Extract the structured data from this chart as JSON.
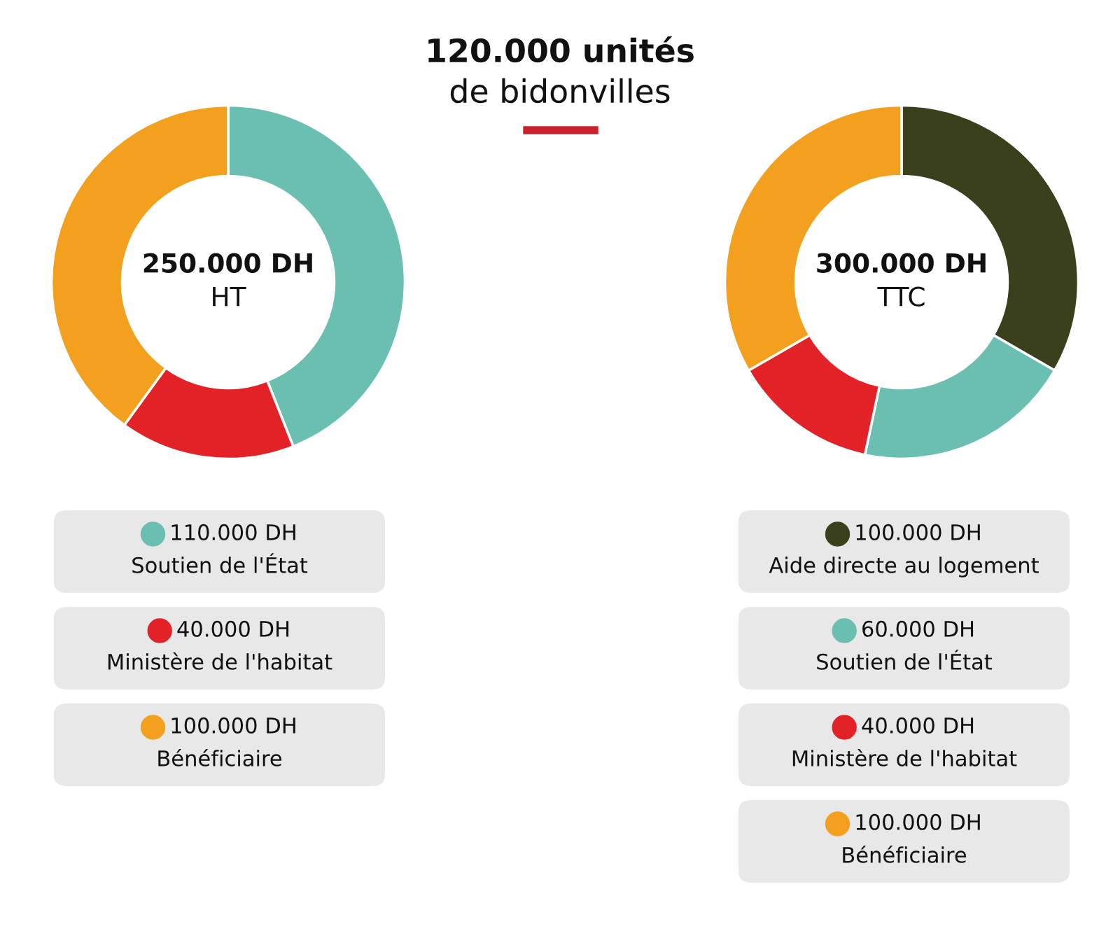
{
  "chart_data": [
    {
      "type": "donut",
      "title": "120.000 unités\nde bidonvilles",
      "categories": [
        "Soutien de l'État",
        "Ministère de l'habitat",
        "Bénéficiaire"
      ],
      "values": [
        110000,
        40000,
        100000
      ],
      "colors": [
        "#6abfb0",
        "#e32227",
        "#f3a01e"
      ],
      "value_labels": [
        "110.000 DH",
        "40.000 DH",
        "100.000 DH"
      ],
      "annotations": [
        "250.000 DH",
        "HT"
      ],
      "legend": "bottom"
    },
    {
      "type": "donut",
      "categories": [
        "Aide directe au logement",
        "Soutien de l'État",
        "Ministère de l'habitat",
        "Bénéficiaire"
      ],
      "values": [
        100000,
        60000,
        40000,
        100000
      ],
      "colors": [
        "#3a401b",
        "#6abfb0",
        "#e32227",
        "#f3a01e"
      ],
      "value_labels": [
        "100.000 DH",
        "60.000 DH",
        "40.000 DH",
        "100.000 DH"
      ],
      "annotations": [
        "300.000 DH",
        "TTC"
      ],
      "legend": "bottom"
    }
  ]
}
